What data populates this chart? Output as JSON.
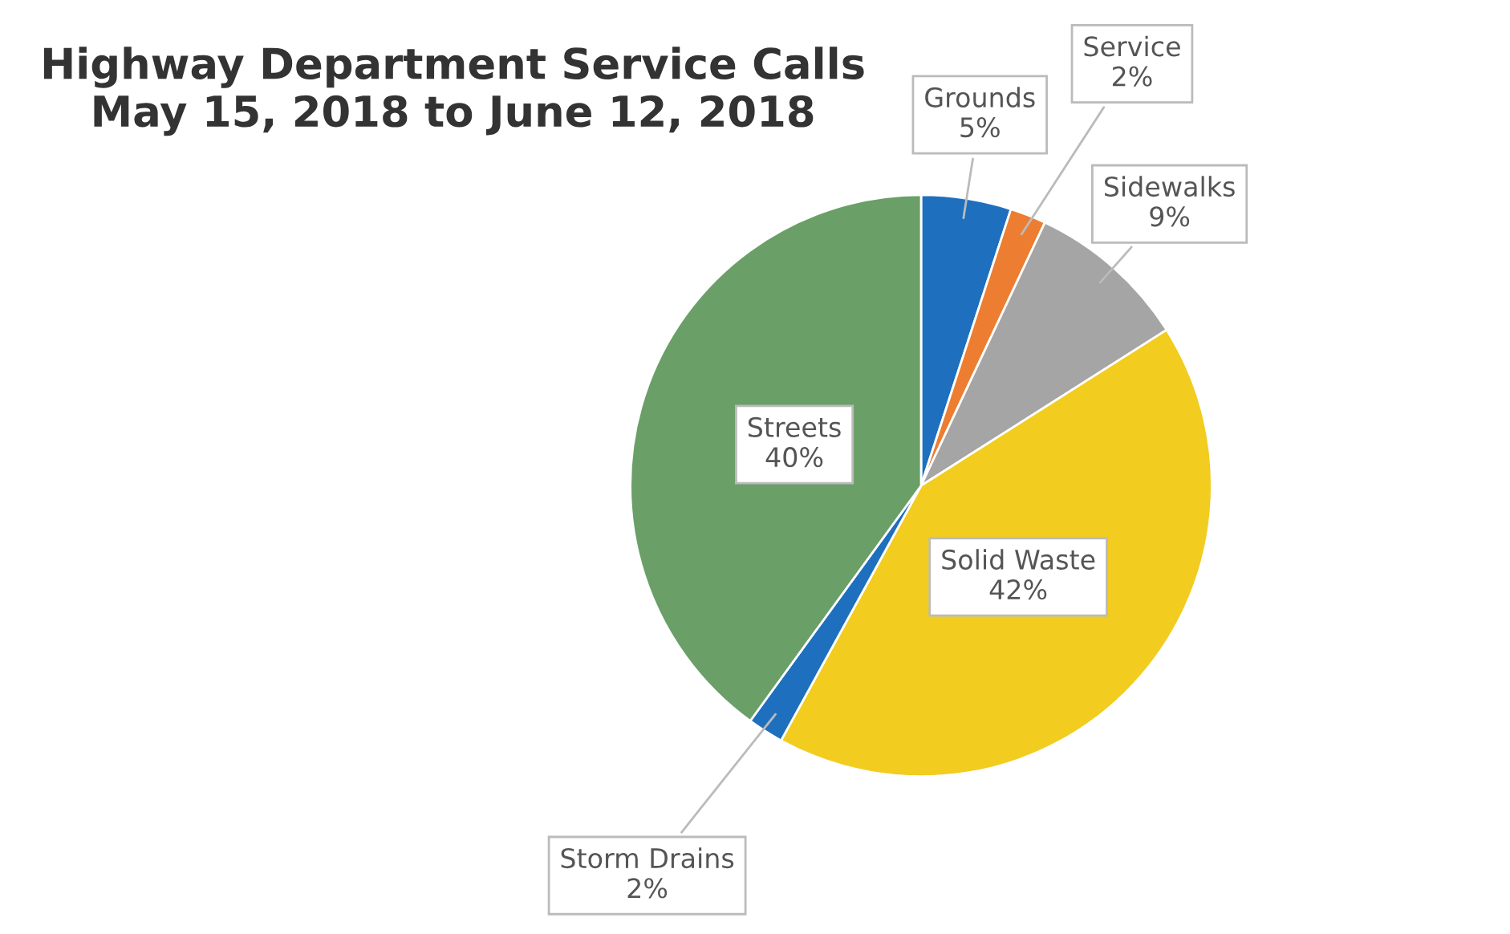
{
  "chart_data": {
    "type": "pie",
    "title": "Highway Department Service Calls\nMay 15, 2018 to June 12, 2018",
    "categories": [
      "Grounds",
      "Service",
      "Sidewalks",
      "Solid Waste",
      "Storm Drains",
      "Streets"
    ],
    "values": [
      5,
      2,
      9,
      42,
      2,
      40
    ],
    "value_labels": [
      "5%",
      "2%",
      "9%",
      "42%",
      "2%",
      "40%"
    ],
    "colors": [
      "#1f6fbf",
      "#ed7d31",
      "#a5a5a5",
      "#f2cc1f",
      "#1f6fbf",
      "#6a9f68"
    ]
  }
}
